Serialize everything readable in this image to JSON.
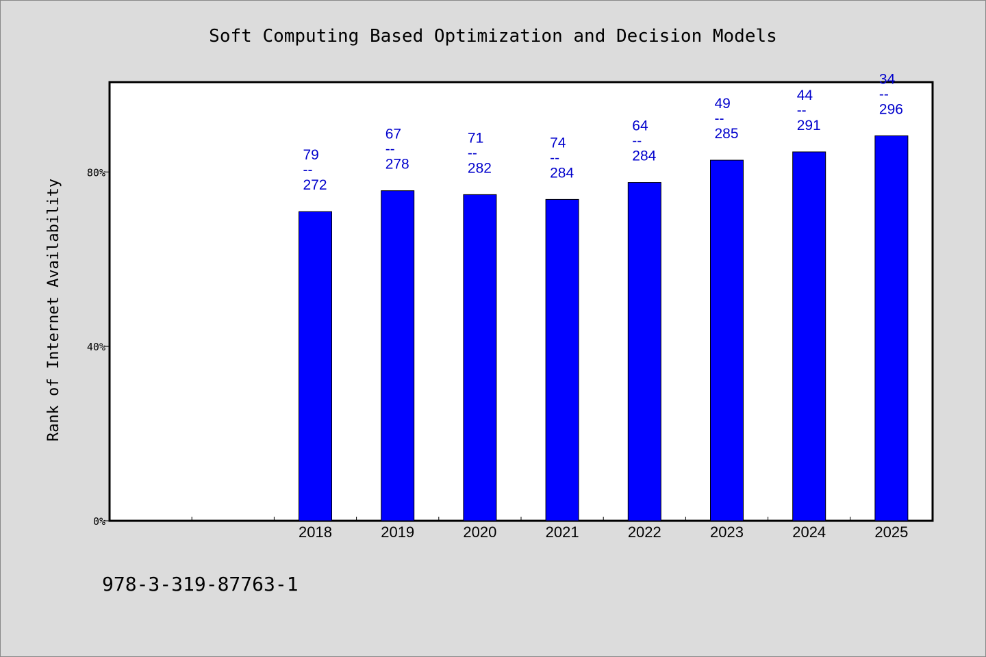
{
  "chart_data": {
    "type": "bar",
    "title": "Soft Computing Based Optimization and Decision Models",
    "ylabel": "Rank of Internet Availability",
    "xlabel": "",
    "categories": [
      "2018",
      "2019",
      "2020",
      "2021",
      "2022",
      "2023",
      "2024",
      "2025"
    ],
    "values": [
      70.9,
      75.7,
      74.8,
      73.7,
      77.6,
      82.7,
      84.6,
      88.3
    ],
    "data_labels": [
      {
        "top": "79",
        "bottom": "272"
      },
      {
        "top": "67",
        "bottom": "278"
      },
      {
        "top": "71",
        "bottom": "282"
      },
      {
        "top": "74",
        "bottom": "284"
      },
      {
        "top": "64",
        "bottom": "284"
      },
      {
        "top": "49",
        "bottom": "285"
      },
      {
        "top": "44",
        "bottom": "291"
      },
      {
        "top": "34",
        "bottom": "296"
      }
    ],
    "label_separator": "--",
    "yticks": [
      {
        "value": 0,
        "label": "0%"
      },
      {
        "value": 40,
        "label": "40%"
      },
      {
        "value": 80,
        "label": "80%"
      }
    ],
    "ylim": [
      0,
      100.6
    ],
    "x_slots": 10,
    "empty_leading_slots": 2,
    "bar_color": "#0000ff",
    "label_color": "#0000cc",
    "grid": false
  },
  "footer": {
    "isbn": "978-3-319-87763-1"
  }
}
